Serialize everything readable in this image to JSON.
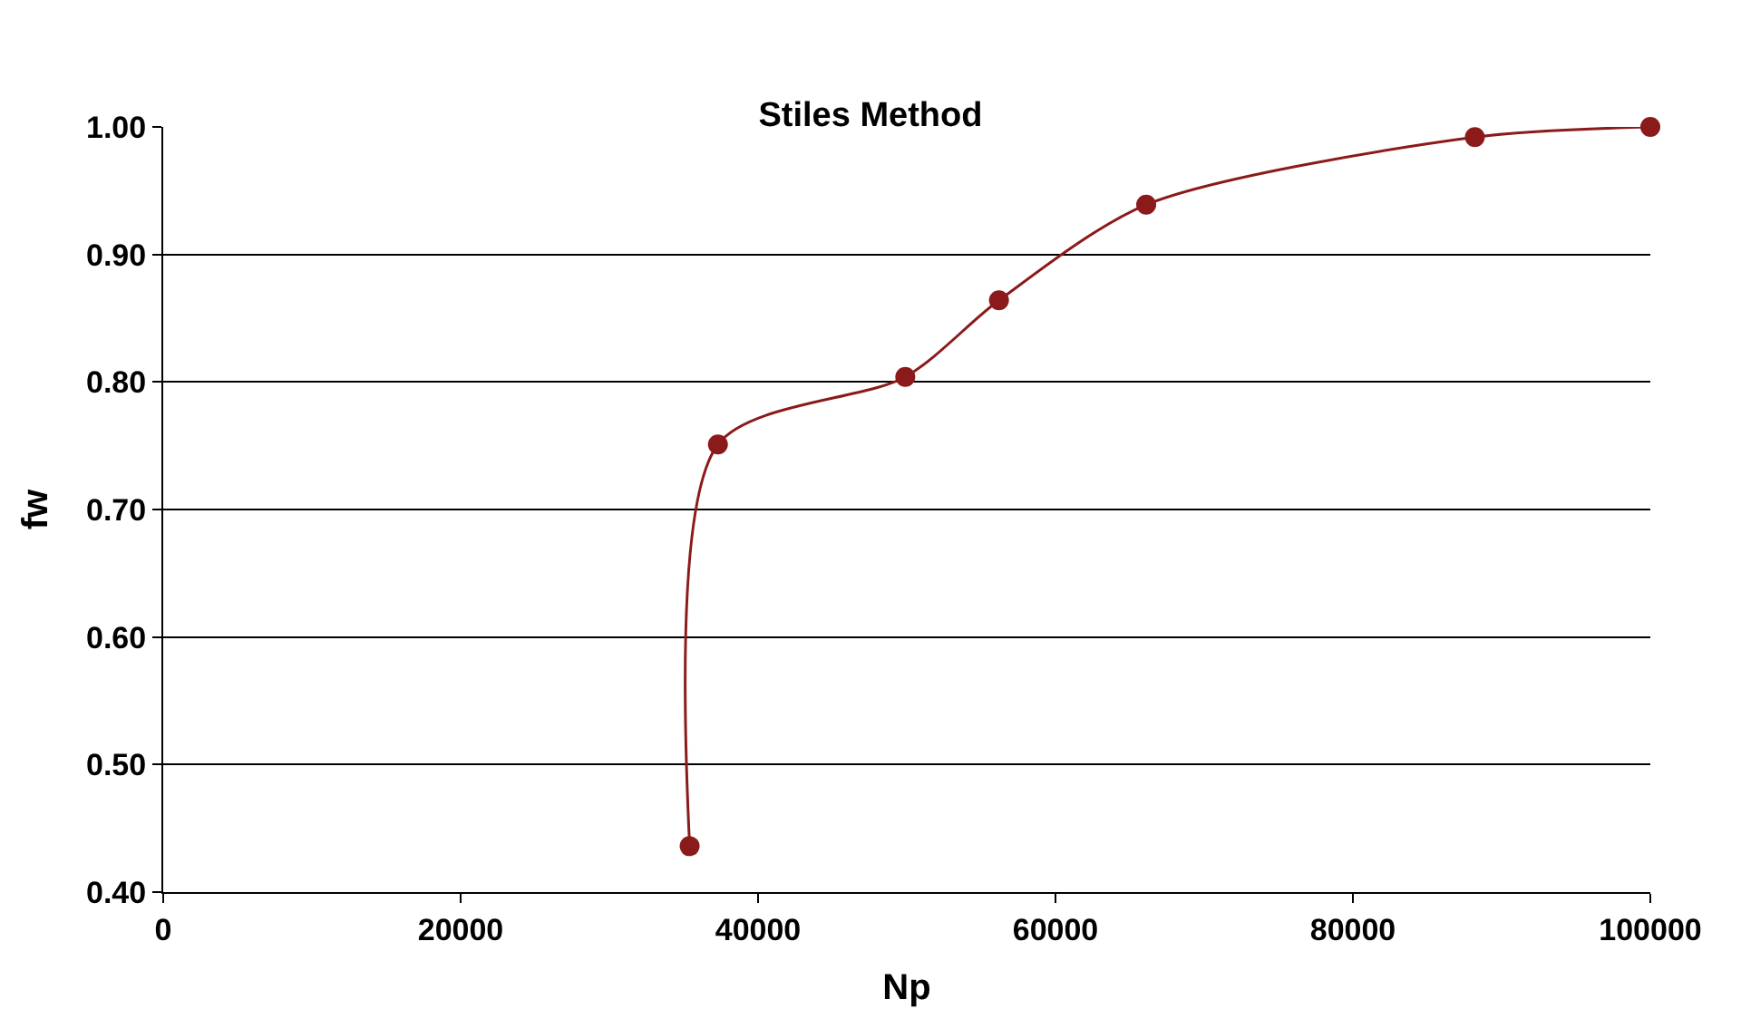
{
  "chart_data": {
    "type": "line",
    "title": "Stiles Method",
    "xlabel": "Np",
    "ylabel": "fw",
    "x": [
      35400,
      37300,
      49900,
      56200,
      66100,
      88200,
      100000
    ],
    "series": [
      {
        "color": "#8b1a1a",
        "values": [
          0.436,
          0.751,
          0.804,
          0.864,
          0.939,
          0.992,
          1.0
        ]
      }
    ],
    "xlim": [
      0,
      100000
    ],
    "xticks": [
      0,
      20000,
      40000,
      60000,
      80000,
      100000
    ],
    "ylim": [
      0.4,
      1.0
    ],
    "yticks": [
      {
        "value": 0.4,
        "label": "0.40"
      },
      {
        "value": 0.5,
        "label": "0.50"
      },
      {
        "value": 0.6,
        "label": "0.60"
      },
      {
        "value": 0.7,
        "label": "0.70"
      },
      {
        "value": 0.8,
        "label": "0.80"
      },
      {
        "value": 0.9,
        "label": "0.90"
      },
      {
        "value": 1.0,
        "label": "1.00"
      }
    ],
    "grid": "y",
    "legend": false,
    "marker": "circle",
    "line_style": "solid"
  }
}
